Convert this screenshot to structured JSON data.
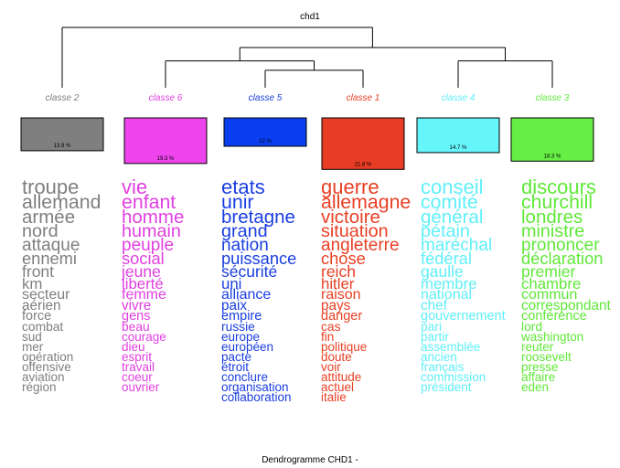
{
  "chart_data": {
    "type": "dendrogram",
    "title": "chd1",
    "footer": "Dendrogramme CHD1 -",
    "classes": [
      {
        "label": "classe  2",
        "percent": 13.9,
        "percent_label": "13.9 %",
        "color": "#7f7f7f",
        "text_color": "#7f7f7f",
        "words": [
          "troupe",
          "allemand",
          "armée",
          "nord",
          "attaque",
          "ennemi",
          "front",
          "km",
          "secteur",
          "aérien",
          "force",
          "combat",
          "sud",
          "mer",
          "opération",
          "offensive",
          "aviation",
          "région"
        ]
      },
      {
        "label": "classe  6",
        "percent": 19.3,
        "percent_label": "19.3 %",
        "color": "#ee44ee",
        "text_color": "#e040e0",
        "words": [
          "vie",
          "enfant",
          "homme",
          "humain",
          "peuple",
          "social",
          "jeune",
          "liberté",
          "femme",
          "vivre",
          "gens",
          "beau",
          "courage",
          "dieu",
          "esprit",
          "travail",
          "coeur",
          "ouvrier"
        ]
      },
      {
        "label": "classe  5",
        "percent": 12,
        "percent_label": "12 %",
        "color": "#0a3ff0",
        "text_color": "#1a3ee0",
        "words": [
          "etats",
          "unir",
          "bretagne",
          "grand",
          "nation",
          "puissance",
          "sécurité",
          "uni",
          "alliance",
          "paix",
          "empire",
          "russie",
          "europe",
          "européen",
          "pacte",
          "étroit",
          "conclure",
          "organisation",
          "collaboration"
        ]
      },
      {
        "label": "classe  1",
        "percent": 21.8,
        "percent_label": "21.8 %",
        "color": "#e83c25",
        "text_color": "#e84024",
        "words": [
          "guerre",
          "allemagne",
          "victoire",
          "situation",
          "angleterre",
          "chose",
          "reich",
          "hitler",
          "raison",
          "pays",
          "danger",
          "cas",
          "fin",
          "politique",
          "doute",
          "voir",
          "attitude",
          "actuel",
          "italie"
        ]
      },
      {
        "label": "classe  4",
        "percent": 14.7,
        "percent_label": "14.7 %",
        "color": "#66f5fb",
        "text_color": "#5ff0f8",
        "words": [
          "conseil",
          "comité",
          "général",
          "pétain",
          "maréchal",
          "fédéral",
          "gaulle",
          "membre",
          "national",
          "chef",
          "gouvernement",
          "pari",
          "partir",
          "assemblée",
          "ancien",
          "français",
          "commission",
          "président"
        ]
      },
      {
        "label": "classe  3",
        "percent": 18.3,
        "percent_label": "18.3 %",
        "color": "#66ee44",
        "text_color": "#60e838",
        "words": [
          "discours",
          "churchill",
          "londres",
          "ministre",
          "prononcer",
          "déclaration",
          "premier",
          "chambre",
          "commun",
          "correspondant",
          "conférence",
          "lord",
          "washington",
          "reuter",
          "roosevelt",
          "presse",
          "affaire",
          "eden"
        ]
      }
    ],
    "merges": [
      {
        "left": 2,
        "right": 3,
        "height": 0.26
      },
      {
        "left": 1,
        "right": "m0",
        "height": 0.4
      },
      {
        "left": 4,
        "right": 5,
        "height": 0.4
      },
      {
        "left": "m1",
        "right": "m2",
        "height": 0.6
      },
      {
        "left": 0,
        "right": "m3",
        "height": 0.9
      }
    ]
  }
}
